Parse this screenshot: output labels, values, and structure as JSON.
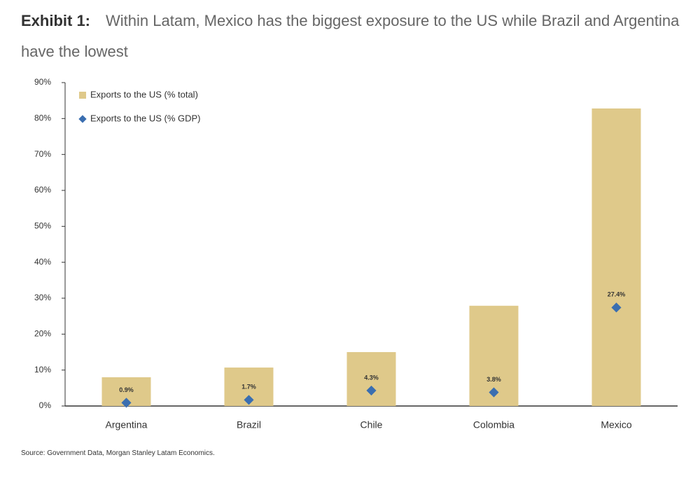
{
  "chart_data": {
    "type": "bar",
    "label": "Exhibit 1:",
    "title": "Within Latam, Mexico has the biggest exposure to the US while Brazil and Argentina have the lowest",
    "source": "Source: Government Data, Morgan Stanley Latam Economics.",
    "categories": [
      "Argentina",
      "Brazil",
      "Chile",
      "Colombia",
      "Mexico"
    ],
    "series": [
      {
        "name": "Exports to the US (% total)",
        "type": "bar",
        "color": "#dfc98a",
        "values": [
          8.0,
          10.7,
          15.0,
          27.9,
          82.8
        ]
      },
      {
        "name": "Exports to the US (% GDP)",
        "type": "point",
        "color": "#3a6eb0",
        "values": [
          0.9,
          1.7,
          4.3,
          3.8,
          27.4
        ],
        "value_labels": [
          "0.9%",
          "1.7%",
          "4.3%",
          "3.8%",
          "27.4%"
        ]
      }
    ],
    "ylim": [
      0,
      90
    ],
    "yticks": [
      {
        "value": 0,
        "label": "0%"
      },
      {
        "value": 10,
        "label": "10%"
      },
      {
        "value": 20,
        "label": "20%"
      },
      {
        "value": 30,
        "label": "30%"
      },
      {
        "value": 40,
        "label": "40%"
      },
      {
        "value": 50,
        "label": "50%"
      },
      {
        "value": 60,
        "label": "60%"
      },
      {
        "value": 70,
        "label": "70%"
      },
      {
        "value": 80,
        "label": "80%"
      },
      {
        "value": 90,
        "label": "90%"
      }
    ],
    "grid": false,
    "legend": "upper left"
  }
}
